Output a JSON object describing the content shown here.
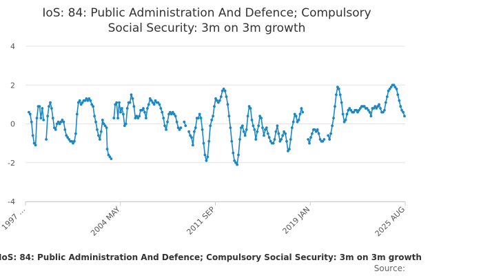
{
  "chart_data": {
    "type": "line",
    "title_line1": "IoS: 84: Public Administration And Defence; Compulsory",
    "title_line2": "Social Security: 3m on 3m growth",
    "xlabel": "",
    "ylabel": "",
    "x_tick_labels": [
      "1997 …",
      "2004 MAY",
      "2011 SEP",
      "2019 JAN",
      "2025 AUG"
    ],
    "y_ticks": [
      4,
      2,
      0,
      -2,
      -4
    ],
    "ylim": [
      -4,
      4
    ],
    "xlim": [
      1997.25,
      2025.6
    ],
    "grid": true,
    "series": [
      {
        "color": "#1a87c4",
        "points": [
          [
            1997.5,
            0.6
          ],
          [
            1997.6,
            0.5
          ],
          [
            1997.7,
            0.1
          ],
          [
            1997.8,
            -0.6
          ],
          [
            1997.9,
            -1.0
          ],
          [
            1998.0,
            -1.1
          ],
          [
            1998.1,
            0.3
          ],
          [
            1998.2,
            0.9
          ],
          [
            1998.3,
            0.9
          ],
          [
            1998.4,
            0.3
          ],
          [
            1998.5,
            0.8
          ],
          [
            1998.6,
            0.2
          ],
          [
            1998.8,
            -0.8
          ],
          [
            1998.9,
            0.4
          ],
          [
            1999.0,
            0.9
          ],
          [
            1999.1,
            1.1
          ],
          [
            1999.2,
            0.8
          ],
          [
            1999.3,
            0.3
          ],
          [
            1999.4,
            -0.2
          ],
          [
            1999.5,
            -0.3
          ],
          [
            1999.6,
            0.0
          ],
          [
            1999.7,
            0.1
          ],
          [
            1999.8,
            0.0
          ],
          [
            1999.9,
            0.1
          ],
          [
            2000.0,
            0.2
          ],
          [
            2000.1,
            0.1
          ],
          [
            2000.2,
            -0.3
          ],
          [
            2000.3,
            -0.6
          ],
          [
            2000.4,
            -0.7
          ],
          [
            2000.5,
            -0.8
          ],
          [
            2000.6,
            -0.9
          ],
          [
            2000.7,
            -0.9
          ],
          [
            2000.8,
            -1.0
          ],
          [
            2000.9,
            -0.9
          ],
          [
            2001.0,
            -0.5
          ],
          [
            2001.1,
            0.5
          ],
          [
            2001.2,
            1.1
          ],
          [
            2001.3,
            1.2
          ],
          [
            2001.4,
            1.0
          ],
          [
            2001.5,
            1.1
          ],
          [
            2001.6,
            1.2
          ],
          [
            2001.7,
            1.2
          ],
          [
            2001.8,
            1.3
          ],
          [
            2001.9,
            1.2
          ],
          [
            2002.0,
            1.3
          ],
          [
            2002.1,
            1.2
          ],
          [
            2002.2,
            1.0
          ],
          [
            2002.3,
            0.9
          ],
          [
            2002.4,
            0.4
          ],
          [
            2002.5,
            0.1
          ],
          [
            2002.6,
            -0.3
          ],
          [
            2002.7,
            -0.6
          ],
          [
            2002.8,
            -0.8
          ],
          [
            2002.9,
            -0.4
          ],
          [
            2003.0,
            0.2
          ],
          [
            2003.1,
            0.0
          ],
          [
            2003.2,
            -0.1
          ],
          [
            2003.3,
            -0.2
          ],
          [
            2003.35,
            -1.3
          ],
          [
            2003.45,
            -1.6
          ],
          [
            2003.55,
            -1.7
          ],
          [
            2003.65,
            -1.8
          ],
          [
            2003.85,
            0.3
          ],
          [
            2003.95,
            1.0
          ],
          [
            2004.05,
            1.1
          ],
          [
            2004.15,
            0.3
          ],
          [
            2004.25,
            1.1
          ],
          [
            2004.35,
            0.6
          ],
          [
            2004.45,
            0.8
          ],
          [
            2004.55,
            0.5
          ],
          [
            2004.65,
            -0.1
          ],
          [
            2004.75,
            0.0
          ],
          [
            2004.85,
            0.8
          ],
          [
            2004.95,
            1.1
          ],
          [
            2005.05,
            1.1
          ],
          [
            2005.15,
            1.5
          ],
          [
            2005.25,
            1.3
          ],
          [
            2005.35,
            0.9
          ],
          [
            2005.45,
            0.3
          ],
          [
            2005.55,
            0.4
          ],
          [
            2005.65,
            0.3
          ],
          [
            2005.75,
            0.4
          ],
          [
            2005.85,
            0.7
          ],
          [
            2005.95,
            0.7
          ],
          [
            2006.05,
            0.8
          ],
          [
            2006.15,
            0.6
          ],
          [
            2006.25,
            0.3
          ],
          [
            2006.35,
            0.8
          ],
          [
            2006.45,
            1.0
          ],
          [
            2006.55,
            1.3
          ],
          [
            2006.65,
            1.2
          ],
          [
            2006.75,
            1.1
          ],
          [
            2006.85,
            1.0
          ],
          [
            2006.95,
            1.2
          ],
          [
            2007.05,
            1.1
          ],
          [
            2007.15,
            1.1
          ],
          [
            2007.25,
            1.0
          ],
          [
            2007.35,
            0.8
          ],
          [
            2007.45,
            0.6
          ],
          [
            2007.55,
            0.3
          ],
          [
            2007.65,
            -0.1
          ],
          [
            2007.75,
            -0.3
          ],
          [
            2007.85,
            0.1
          ],
          [
            2007.95,
            0.5
          ],
          [
            2008.05,
            0.6
          ],
          [
            2008.15,
            0.5
          ],
          [
            2008.25,
            0.6
          ],
          [
            2008.35,
            0.5
          ],
          [
            2008.45,
            0.4
          ],
          [
            2008.55,
            0.1
          ],
          [
            2008.65,
            -0.2
          ],
          [
            2008.75,
            -0.3
          ],
          [
            2008.85,
            -0.2
          ],
          [
            2009.1,
            0.1
          ],
          [
            2009.2,
            -0.1
          ],
          [
            2009.45,
            -0.4
          ],
          [
            2009.55,
            -0.6
          ],
          [
            2009.65,
            -0.7
          ],
          [
            2009.75,
            -1.1
          ],
          [
            2009.85,
            -0.4
          ],
          [
            2009.95,
            -0.2
          ],
          [
            2010.05,
            0.3
          ],
          [
            2010.15,
            0.3
          ],
          [
            2010.25,
            0.5
          ],
          [
            2010.35,
            0.3
          ],
          [
            2010.45,
            -0.3
          ],
          [
            2010.55,
            -1.0
          ],
          [
            2010.65,
            -1.6
          ],
          [
            2010.75,
            -1.9
          ],
          [
            2010.85,
            -1.7
          ],
          [
            2010.95,
            -0.9
          ],
          [
            2011.05,
            -0.1
          ],
          [
            2011.15,
            0.2
          ],
          [
            2011.25,
            0.4
          ],
          [
            2011.35,
            0.9
          ],
          [
            2011.45,
            1.3
          ],
          [
            2011.55,
            1.2
          ],
          [
            2011.65,
            1.1
          ],
          [
            2011.75,
            1.2
          ],
          [
            2011.85,
            1.4
          ],
          [
            2011.95,
            1.7
          ],
          [
            2012.05,
            1.8
          ],
          [
            2012.15,
            1.7
          ],
          [
            2012.25,
            1.4
          ],
          [
            2012.35,
            1.0
          ],
          [
            2012.45,
            0.4
          ],
          [
            2012.55,
            -0.2
          ],
          [
            2012.65,
            -0.9
          ],
          [
            2012.75,
            -1.5
          ],
          [
            2012.85,
            -1.9
          ],
          [
            2012.95,
            -2.0
          ],
          [
            2013.05,
            -2.1
          ],
          [
            2013.15,
            -1.6
          ],
          [
            2013.25,
            -0.8
          ],
          [
            2013.35,
            -0.2
          ],
          [
            2013.45,
            -0.1
          ],
          [
            2013.55,
            -0.4
          ],
          [
            2013.65,
            -0.6
          ],
          [
            2013.75,
            -0.3
          ],
          [
            2013.85,
            0.4
          ],
          [
            2013.95,
            0.9
          ],
          [
            2014.05,
            0.8
          ],
          [
            2014.15,
            0.2
          ],
          [
            2014.25,
            -0.1
          ],
          [
            2014.35,
            -0.3
          ],
          [
            2014.45,
            -0.8
          ],
          [
            2014.55,
            -0.4
          ],
          [
            2014.65,
            -0.1
          ],
          [
            2014.75,
            0.4
          ],
          [
            2014.85,
            0.3
          ],
          [
            2014.95,
            -0.2
          ],
          [
            2015.05,
            -0.6
          ],
          [
            2015.15,
            -0.3
          ],
          [
            2015.25,
            -0.2
          ],
          [
            2015.35,
            -0.5
          ],
          [
            2015.45,
            -0.7
          ],
          [
            2015.55,
            -0.9
          ],
          [
            2015.65,
            -1.0
          ],
          [
            2015.75,
            -1.0
          ],
          [
            2015.85,
            -0.8
          ],
          [
            2015.95,
            -0.4
          ],
          [
            2016.05,
            -0.1
          ],
          [
            2016.15,
            -0.5
          ],
          [
            2016.25,
            -0.9
          ],
          [
            2016.35,
            -0.8
          ],
          [
            2016.45,
            -0.6
          ],
          [
            2016.55,
            -0.4
          ],
          [
            2016.65,
            -0.5
          ],
          [
            2016.75,
            -0.9
          ],
          [
            2016.85,
            -1.4
          ],
          [
            2016.95,
            -1.3
          ],
          [
            2017.05,
            -0.8
          ],
          [
            2017.15,
            -0.2
          ],
          [
            2017.25,
            0.1
          ],
          [
            2017.35,
            0.5
          ],
          [
            2017.45,
            0.4
          ],
          [
            2017.55,
            0.1
          ],
          [
            2017.65,
            0.2
          ],
          [
            2017.75,
            0.5
          ],
          [
            2017.85,
            0.8
          ],
          [
            2017.95,
            0.6
          ],
          [
            2018.35,
            -0.8
          ],
          [
            2018.45,
            -1.0
          ],
          [
            2018.55,
            -0.7
          ],
          [
            2018.65,
            -0.5
          ],
          [
            2018.75,
            -0.3
          ],
          [
            2018.85,
            -0.3
          ],
          [
            2018.95,
            -0.4
          ],
          [
            2019.05,
            -0.3
          ],
          [
            2019.15,
            -0.5
          ],
          [
            2019.25,
            -0.8
          ],
          [
            2019.35,
            -0.9
          ],
          [
            2019.45,
            -0.9
          ],
          [
            2019.55,
            -0.8
          ],
          [
            2019.85,
            -0.6
          ],
          [
            2019.95,
            -0.8
          ],
          [
            2020.05,
            -0.5
          ],
          [
            2020.15,
            -0.1
          ],
          [
            2020.25,
            0.3
          ],
          [
            2020.35,
            0.9
          ],
          [
            2020.45,
            1.5
          ],
          [
            2020.55,
            1.9
          ],
          [
            2020.65,
            1.8
          ],
          [
            2020.75,
            1.5
          ],
          [
            2020.85,
            1.1
          ],
          [
            2020.95,
            0.5
          ],
          [
            2021.05,
            0.1
          ],
          [
            2021.15,
            0.2
          ],
          [
            2021.25,
            0.5
          ],
          [
            2021.35,
            0.7
          ],
          [
            2021.45,
            0.8
          ],
          [
            2021.55,
            0.7
          ],
          [
            2021.65,
            0.6
          ],
          [
            2021.75,
            0.6
          ],
          [
            2021.85,
            0.7
          ],
          [
            2021.95,
            0.7
          ],
          [
            2022.05,
            0.6
          ],
          [
            2022.15,
            0.7
          ],
          [
            2022.25,
            0.8
          ],
          [
            2022.35,
            0.9
          ],
          [
            2022.45,
            0.9
          ],
          [
            2022.55,
            0.9
          ],
          [
            2022.65,
            0.8
          ],
          [
            2022.75,
            0.8
          ],
          [
            2022.85,
            0.7
          ],
          [
            2022.95,
            0.6
          ],
          [
            2023.05,
            0.4
          ],
          [
            2023.15,
            0.8
          ],
          [
            2023.25,
            0.8
          ],
          [
            2023.35,
            0.9
          ],
          [
            2023.45,
            0.8
          ],
          [
            2023.55,
            0.9
          ],
          [
            2023.65,
            1.0
          ],
          [
            2023.75,
            0.8
          ],
          [
            2023.85,
            0.6
          ],
          [
            2023.95,
            0.6
          ],
          [
            2024.05,
            0.7
          ],
          [
            2024.15,
            1.1
          ],
          [
            2024.25,
            1.4
          ],
          [
            2024.35,
            1.7
          ],
          [
            2024.45,
            1.8
          ],
          [
            2024.55,
            1.9
          ],
          [
            2024.65,
            2.0
          ],
          [
            2024.75,
            2.0
          ],
          [
            2024.85,
            1.9
          ],
          [
            2024.95,
            1.8
          ],
          [
            2025.05,
            1.5
          ],
          [
            2025.15,
            1.2
          ],
          [
            2025.25,
            0.9
          ],
          [
            2025.35,
            0.7
          ],
          [
            2025.45,
            0.6
          ],
          [
            2025.55,
            0.4
          ]
        ]
      }
    ]
  },
  "footer": {
    "caption": "IoS: 84: Public Administration And Defence; Compulsory Social Security: 3m on 3m growth",
    "source": "Source:"
  }
}
